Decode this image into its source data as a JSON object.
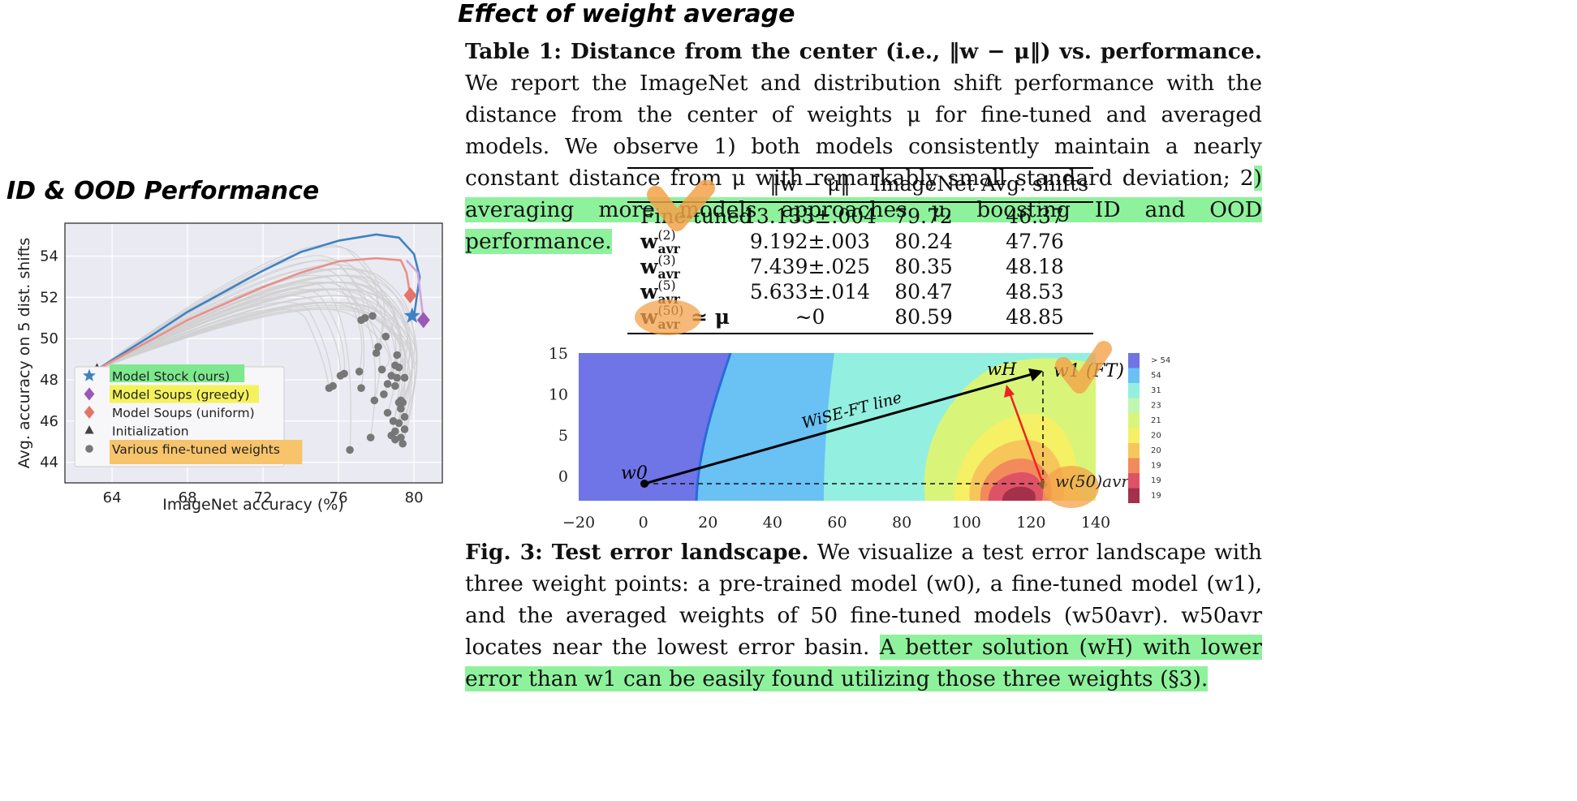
{
  "left_panel": {
    "heading": "ID & OOD Performance"
  },
  "right_panel": {
    "heading": "Effect of weight average",
    "table_caption": {
      "title": "Table 1: Distance from the center (i.e., ‖w − μ‖) vs. performance.",
      "body": "We report the ImageNet and distribution shift performance with the distance from the center of weights μ for fine-tuned and averaged models. We observe 1) both models consistently maintain a nearly constant distance from μ with remarkably small standard deviation; 2",
      "highlight": ") averaging more models approaches μ, boosting ID and OOD performance."
    },
    "table": {
      "headers": [
        "",
        "‖w − μ‖",
        "ImageNet",
        "Avg. shifts"
      ],
      "rows": [
        {
          "label": "Fine-tuned",
          "dist": "13.133±.004",
          "imagenet": "79.72",
          "shifts": "46.37"
        },
        {
          "label": "w",
          "sub": "avr",
          "sup": "(2)",
          "dist": "9.192±.003",
          "imagenet": "80.24",
          "shifts": "47.76"
        },
        {
          "label": "w",
          "sub": "avr",
          "sup": "(3)",
          "dist": "7.439±.025",
          "imagenet": "80.35",
          "shifts": "48.18"
        },
        {
          "label": "w",
          "sub": "avr",
          "sup": "(5)",
          "dist": "5.633±.014",
          "imagenet": "80.47",
          "shifts": "48.53"
        },
        {
          "label": "w",
          "sub": "avr",
          "sup": "(50)",
          "suffix": " ≃ μ",
          "dist": "∼0",
          "imagenet": "80.59",
          "shifts": "48.85"
        }
      ]
    },
    "fig_caption": {
      "title": "Fig. 3: Test error landscape.",
      "body": "We visualize a test error landscape with three weight points: a pre-trained model (w0), a fine-tuned model (w1), and the averaged weights of 50 fine-tuned models (w50avr). w50avr locates near the lowest error basin.",
      "highlight": "A better solution (wH) with lower error than w1 can be easily found utilizing those three weights (§3)."
    }
  },
  "chart_data": [
    {
      "type": "scatter",
      "title": "",
      "xlabel": "ImageNet accuracy (%)",
      "ylabel": "Avg. accuracy on 5 dist. shifts",
      "xlim": [
        61.5,
        81.5
      ],
      "ylim": [
        43,
        55.6
      ],
      "xticks": [
        64,
        68,
        72,
        76,
        80
      ],
      "yticks": [
        44,
        46,
        48,
        50,
        52,
        54
      ],
      "grid": true,
      "legend_position": "lower-left",
      "series": [
        {
          "name": "Model Stock (ours)",
          "marker": "star",
          "color": "#3f82c4",
          "points": [
            [
              79.9,
              51.1
            ]
          ]
        },
        {
          "name": "Model Soups (greedy)",
          "marker": "diamond",
          "color": "#9b59b6",
          "points": [
            [
              80.5,
              50.9
            ]
          ]
        },
        {
          "name": "Model Soups (uniform)",
          "marker": "diamond",
          "color": "#e57368",
          "points": [
            [
              79.8,
              52.1
            ]
          ]
        },
        {
          "name": "Initialization",
          "marker": "triangle",
          "color": "#444444",
          "points": [
            [
              63.2,
              48.5
            ]
          ]
        },
        {
          "name": "Various fine-tuned weights",
          "marker": "circle",
          "color": "#777777",
          "points": [
            [
              75.5,
              47.6
            ],
            [
              75.7,
              47.7
            ],
            [
              76.1,
              48.2
            ],
            [
              76.3,
              48.3
            ],
            [
              76.6,
              44.6
            ],
            [
              77.1,
              48.4
            ],
            [
              77.2,
              47.6
            ],
            [
              77.4,
              51.0
            ],
            [
              77.2,
              50.9
            ],
            [
              77.8,
              51.1
            ],
            [
              77.9,
              47.0
            ],
            [
              77.7,
              45.2
            ],
            [
              78.0,
              49.3
            ],
            [
              78.1,
              49.6
            ],
            [
              78.3,
              48.5
            ],
            [
              78.4,
              47.3
            ],
            [
              78.5,
              50.1
            ],
            [
              78.6,
              46.4
            ],
            [
              78.6,
              47.8
            ],
            [
              78.8,
              48.2
            ],
            [
              78.8,
              45.3
            ],
            [
              79.0,
              48.7
            ],
            [
              79.0,
              47.7
            ],
            [
              78.9,
              46.0
            ],
            [
              79.0,
              45.5
            ],
            [
              79.0,
              45.1
            ],
            [
              79.1,
              48.1
            ],
            [
              79.2,
              46.9
            ],
            [
              79.2,
              45.9
            ],
            [
              79.3,
              47.0
            ],
            [
              79.3,
              46.6
            ],
            [
              79.4,
              44.9
            ],
            [
              79.3,
              45.2
            ],
            [
              79.5,
              45.6
            ],
            [
              79.4,
              46.9
            ],
            [
              79.2,
              48.6
            ],
            [
              79.5,
              48.1
            ],
            [
              79.1,
              49.2
            ],
            [
              79.5,
              46.2
            ]
          ]
        }
      ],
      "curves": [
        {
          "series": "Model Stock (ours)",
          "color": "#3f82c4",
          "points": [
            [
              63.2,
              48.5
            ],
            [
              66,
              50.1
            ],
            [
              68,
              51.3
            ],
            [
              70,
              52.3
            ],
            [
              72,
              53.3
            ],
            [
              74,
              54.2
            ],
            [
              76,
              54.75
            ],
            [
              78,
              55.05
            ],
            [
              79.2,
              54.9
            ],
            [
              80.0,
              54.1
            ],
            [
              80.3,
              53.0
            ],
            [
              80.0,
              51.1
            ]
          ]
        },
        {
          "series": "Model Soups (uniform)",
          "color": "#e9908a",
          "points": [
            [
              63.2,
              48.5
            ],
            [
              66,
              49.9
            ],
            [
              68,
              50.9
            ],
            [
              70,
              51.7
            ],
            [
              72,
              52.5
            ],
            [
              74,
              53.2
            ],
            [
              76,
              53.75
            ],
            [
              78,
              53.9
            ],
            [
              79.3,
              53.8
            ],
            [
              79.6,
              53.2
            ],
            [
              79.8,
              52.1
            ]
          ]
        },
        {
          "series": "Model Soups (greedy)",
          "color": "#cfa3dc",
          "points": [
            [
              79.6,
              53.8
            ],
            [
              80.2,
              53.2
            ],
            [
              80.5,
              50.9
            ]
          ]
        }
      ],
      "annotations": [
        {
          "text": "Model Stock (ours)",
          "highlight": "#7de88d"
        },
        {
          "text": "Model Soups (greedy)",
          "highlight": "#f4f25c"
        },
        {
          "text": "Various fine-tuned weights",
          "highlight": "#f7c46c"
        }
      ]
    },
    {
      "type": "heatmap",
      "title": "",
      "xlabel": "",
      "ylabel": "",
      "xlim": [
        -20,
        140
      ],
      "ylim": [
        -3,
        15
      ],
      "xticks": [
        -20,
        0,
        20,
        40,
        60,
        80,
        100,
        120,
        140
      ],
      "yticks": [
        0,
        5,
        10,
        15
      ],
      "colorbar_labels": [
        "> 54",
        "54",
        "31",
        "23",
        "21",
        "20",
        "20",
        "19",
        "19",
        "19"
      ],
      "points": [
        {
          "label": "w0",
          "x": 0,
          "y": 0
        },
        {
          "label": "w1 (FT)",
          "x": 125,
          "y": 13
        },
        {
          "label": "wH",
          "x": 112,
          "y": 11
        },
        {
          "label": "w(50)avr",
          "x": 124,
          "y": 0
        }
      ],
      "annotations": [
        {
          "text": "WiSE-FT line"
        }
      ]
    }
  ]
}
